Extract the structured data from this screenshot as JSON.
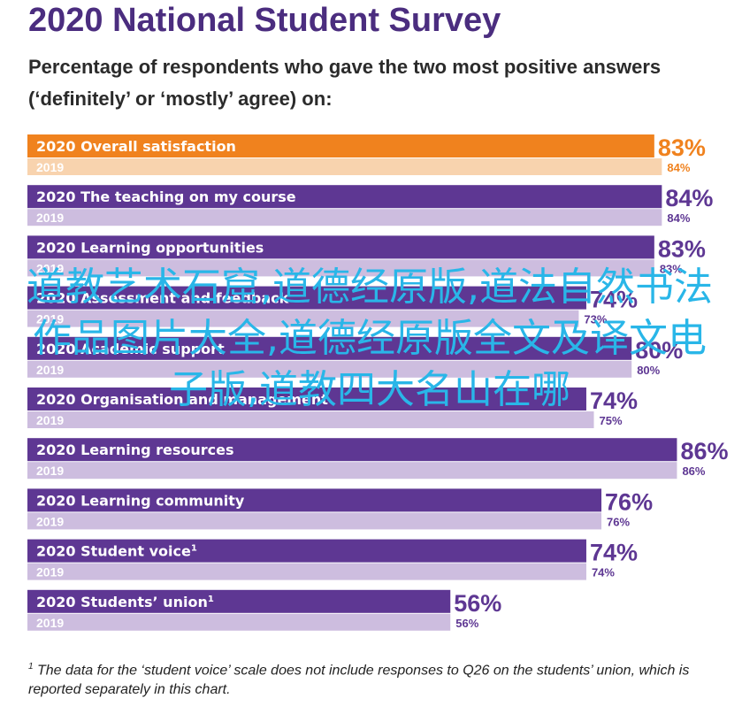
{
  "header": {
    "title": "2020 National Student Survey",
    "subtitle": "Percentage of respondents who gave the two most positive answers (‘definitely’ or ‘mostly’ agree) on:"
  },
  "footnote": {
    "marker": "1",
    "text": " The data for the ‘student voice’ scale does not include responses to Q26 on the students’ union, which is reported separately in this chart."
  },
  "watermark": {
    "text": "道教艺术石窟,道德经原版,道法自然书法作品图片大全,道德经原版全文及译文电子版,道教四大名山在哪"
  },
  "chart_data": {
    "type": "bar",
    "orientation": "horizontal",
    "xlim": [
      0,
      100
    ],
    "unit": "%",
    "series_labels": {
      "current": "2020",
      "previous": "2019"
    },
    "categories": [
      {
        "name": "Overall satisfaction",
        "sup": "",
        "v2020": 83,
        "v2019": 84,
        "label2020": "83%",
        "label2019": "84%",
        "highlight": true
      },
      {
        "name": "The teaching on my course",
        "sup": "",
        "v2020": 84,
        "v2019": 84,
        "label2020": "84%",
        "label2019": "84%",
        "highlight": false
      },
      {
        "name": "Learning opportunities",
        "sup": "",
        "v2020": 83,
        "v2019": 83,
        "label2020": "83%",
        "label2019": "83%",
        "highlight": false
      },
      {
        "name": "Assessment and feedback",
        "sup": "",
        "v2020": 74,
        "v2019": 73,
        "label2020": "74%",
        "label2019": "73%",
        "highlight": false
      },
      {
        "name": "Academic support",
        "sup": "",
        "v2020": 80,
        "v2019": 80,
        "label2020": "80%",
        "label2019": "80%",
        "highlight": false
      },
      {
        "name": "Organisation and management",
        "sup": "",
        "v2020": 74,
        "v2019": 75,
        "label2020": "74%",
        "label2019": "75%",
        "highlight": false
      },
      {
        "name": "Learning resources",
        "sup": "",
        "v2020": 86,
        "v2019": 86,
        "label2020": "86%",
        "label2019": "86%",
        "highlight": false
      },
      {
        "name": "Learning community",
        "sup": "",
        "v2020": 76,
        "v2019": 76,
        "label2020": "76%",
        "label2019": "76%",
        "highlight": false
      },
      {
        "name": "Student voice",
        "sup": "1",
        "v2020": 74,
        "v2019": 74,
        "label2020": "74%",
        "label2019": "74%",
        "highlight": false
      },
      {
        "name": "Students’ union",
        "sup": "1",
        "v2020": 56,
        "v2019": 56,
        "label2020": "56%",
        "label2019": "56%",
        "highlight": false
      }
    ],
    "colors": {
      "highlight_2020": "#f0821e",
      "highlight_2019": "#f8d3ae",
      "bar_2020": "#5e3793",
      "bar_2019": "#cdbddf",
      "value_highlight": "#f0821e",
      "value_normal": "#5e3793",
      "value_2019_highlight": "#f0821e",
      "value_2019_normal": "#5e3793"
    }
  }
}
